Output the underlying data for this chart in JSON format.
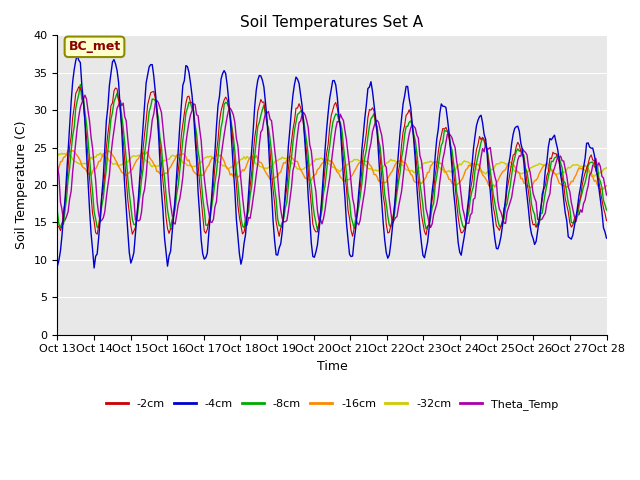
{
  "title": "Soil Temperatures Set A",
  "xlabel": "Time",
  "ylabel": "Soil Temperature (C)",
  "annotation": "BC_met",
  "ylim": [
    0,
    40
  ],
  "yticks": [
    0,
    5,
    10,
    15,
    20,
    25,
    30,
    35,
    40
  ],
  "xtick_labels": [
    "Oct 13",
    "Oct 14",
    "Oct 15",
    "Oct 16",
    "Oct 17",
    "Oct 18",
    "Oct 19",
    "Oct 20",
    "Oct 21",
    "Oct 22",
    "Oct 23",
    "Oct 24",
    "Oct 25",
    "Oct 26",
    "Oct 27",
    "Oct 28"
  ],
  "series": [
    {
      "label": "-2cm",
      "color": "#cc0000"
    },
    {
      "label": "-4cm",
      "color": "#0000cc"
    },
    {
      "label": "-8cm",
      "color": "#00aa00"
    },
    {
      "label": "-16cm",
      "color": "#ff8800"
    },
    {
      "label": "-32cm",
      "color": "#cccc00"
    },
    {
      "label": "Theta_Temp",
      "color": "#aa00aa"
    }
  ],
  "bg_color": "#e8e8e8",
  "fig_bg": "#ffffff"
}
